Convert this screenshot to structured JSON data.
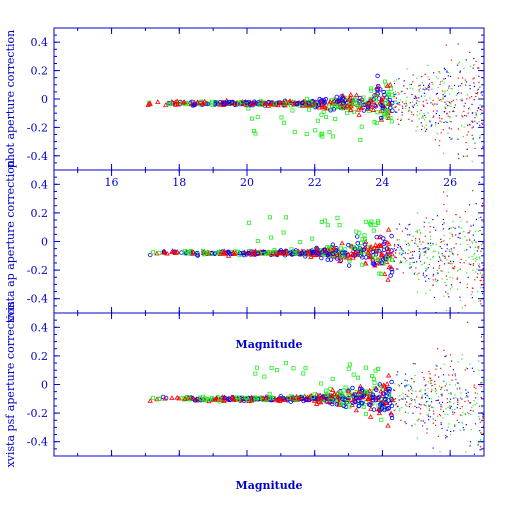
{
  "colors": {
    "axis": "#0000cc",
    "red": "#ff0000",
    "green": "#22ee22",
    "blue": "#0000ff"
  },
  "chart_data": [
    {
      "type": "scatter",
      "ylabel": "phot aperture correction",
      "ylim": [
        -0.5,
        0.5
      ],
      "xlim": [
        14.3,
        27
      ],
      "y_ticks": [
        "0.4",
        "0.2",
        "0",
        "-0.2",
        "-0.4"
      ],
      "x_ticks": [
        "16",
        "18",
        "20",
        "22",
        "24",
        "26"
      ],
      "x_tick_labels_shown": true,
      "xlabel": "",
      "offset": -0.03,
      "outlier_direction": "down",
      "series": [
        {
          "color": "red",
          "description_hidden": true
        },
        {
          "color": "green",
          "description_hidden": true
        },
        {
          "color": "blue",
          "description_hidden": true
        }
      ]
    },
    {
      "type": "scatter",
      "ylabel": "xvista ap aperture correction",
      "ylim": [
        -0.5,
        0.5
      ],
      "xlim": [
        14.3,
        27
      ],
      "y_ticks": [
        "0.4",
        "0.2",
        "0",
        "-0.2",
        "-0.4"
      ],
      "x_ticks": [
        "16",
        "18",
        "20",
        "22",
        "24",
        "26"
      ],
      "x_tick_labels_shown": false,
      "xlabel": "Magnitude",
      "offset": -0.08,
      "outlier_direction": "up",
      "series": [
        {
          "color": "red"
        },
        {
          "color": "green"
        },
        {
          "color": "blue"
        }
      ]
    },
    {
      "type": "scatter",
      "ylabel": "xvista psf aperture correction",
      "ylim": [
        -0.5,
        0.5
      ],
      "xlim": [
        14.3,
        27
      ],
      "y_ticks": [
        "0.4",
        "0.2",
        "0",
        "-0.2",
        "-0.4"
      ],
      "x_ticks": [
        "16",
        "18",
        "20",
        "22",
        "24",
        "26"
      ],
      "x_tick_labels_shown": false,
      "xlabel": "Magnitude",
      "offset": -0.1,
      "outlier_direction": "up",
      "series": [
        {
          "color": "red"
        },
        {
          "color": "green"
        },
        {
          "color": "blue"
        }
      ]
    }
  ]
}
